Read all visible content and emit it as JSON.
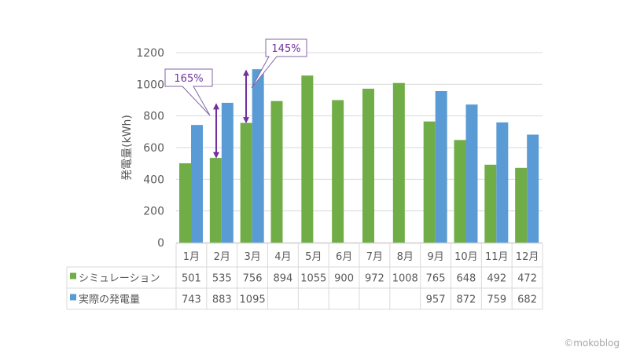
{
  "chart_data": {
    "type": "bar",
    "ylabel": "発電量(kWh)",
    "ylim": [
      0,
      1200
    ],
    "yticks": [
      0,
      200,
      400,
      600,
      800,
      1000,
      1200
    ],
    "grid": true,
    "categories": [
      "1月",
      "2月",
      "3月",
      "4月",
      "5月",
      "6月",
      "7月",
      "8月",
      "9月",
      "10月",
      "11月",
      "12月"
    ],
    "series": [
      {
        "name": "シミュレーション",
        "color": "#70ad47",
        "values": [
          501,
          535,
          756,
          894,
          1055,
          900,
          972,
          1008,
          765,
          648,
          492,
          472
        ]
      },
      {
        "name": "実際の発電量",
        "color": "#5b9bd5",
        "values": [
          743,
          883,
          1095,
          null,
          null,
          null,
          null,
          null,
          957,
          872,
          759,
          682
        ]
      }
    ],
    "annotations": [
      {
        "text": "165%",
        "category": "2月",
        "from": 535,
        "to": 883
      },
      {
        "text": "145%",
        "category": "3月",
        "from": 756,
        "to": 1095
      }
    ],
    "annotation_color": "#7030a0",
    "data_table": true
  },
  "watermark": "©mokoblog"
}
